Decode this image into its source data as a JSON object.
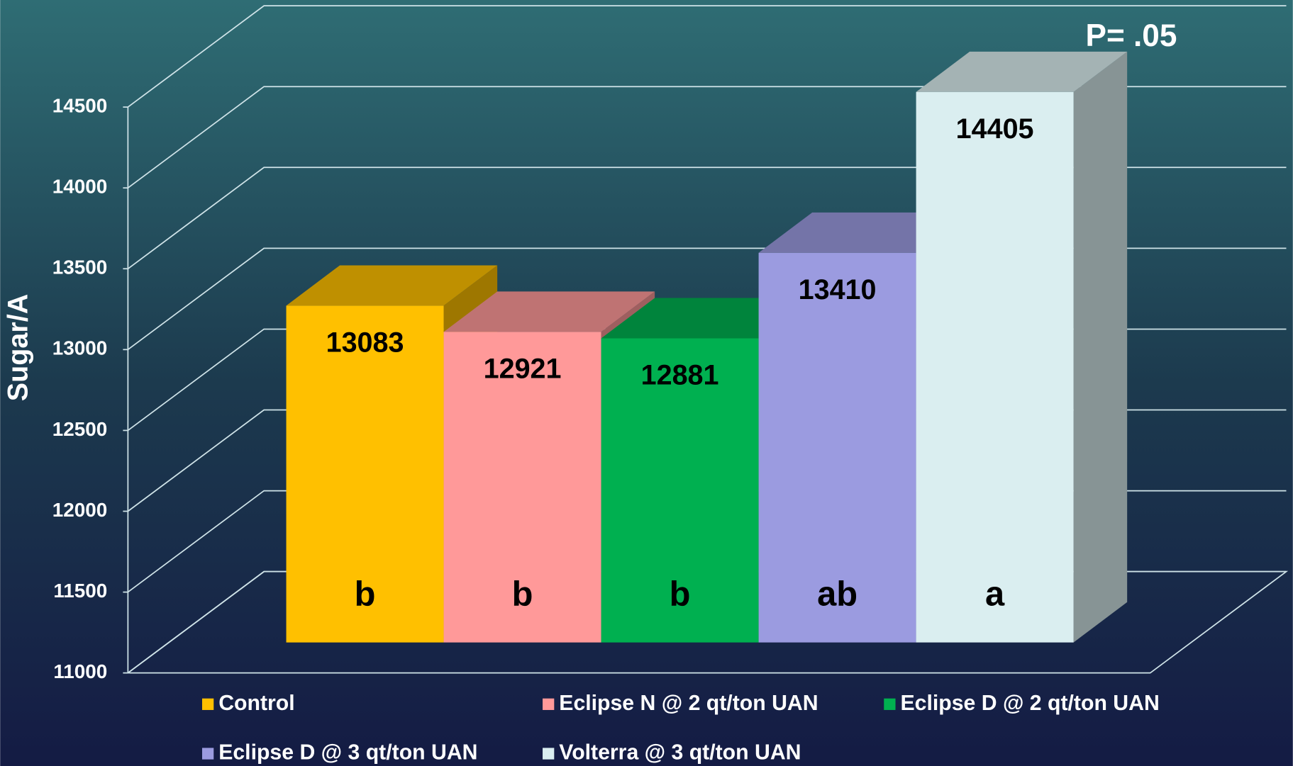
{
  "chart_data": {
    "type": "bar3d",
    "y_label": "Sugar/A",
    "annotation": "P= .05",
    "ylim": [
      11000,
      14500
    ],
    "yticks": [
      11000,
      11500,
      12000,
      12500,
      13000,
      13500,
      14000,
      14500
    ],
    "grid": true,
    "series": [
      {
        "name": "Control",
        "color": "#FFC000",
        "values": [
          13083
        ],
        "significance": "b"
      },
      {
        "name": "Eclipse N @ 2 qt/ton UAN",
        "color": "#FF9999",
        "values": [
          12921
        ],
        "significance": "b"
      },
      {
        "name": "Eclipse D @ 2 qt/ton UAN",
        "color": "#00B050",
        "values": [
          12881
        ],
        "significance": "b"
      },
      {
        "name": "Eclipse D @ 3 qt/ton UAN",
        "color": "#9B9BE0",
        "values": [
          13410
        ],
        "significance": "ab"
      },
      {
        "name": "Volterra @ 3 qt/ton UAN",
        "color": "#DAEEF0",
        "values": [
          14405
        ],
        "significance": "a"
      }
    ]
  }
}
